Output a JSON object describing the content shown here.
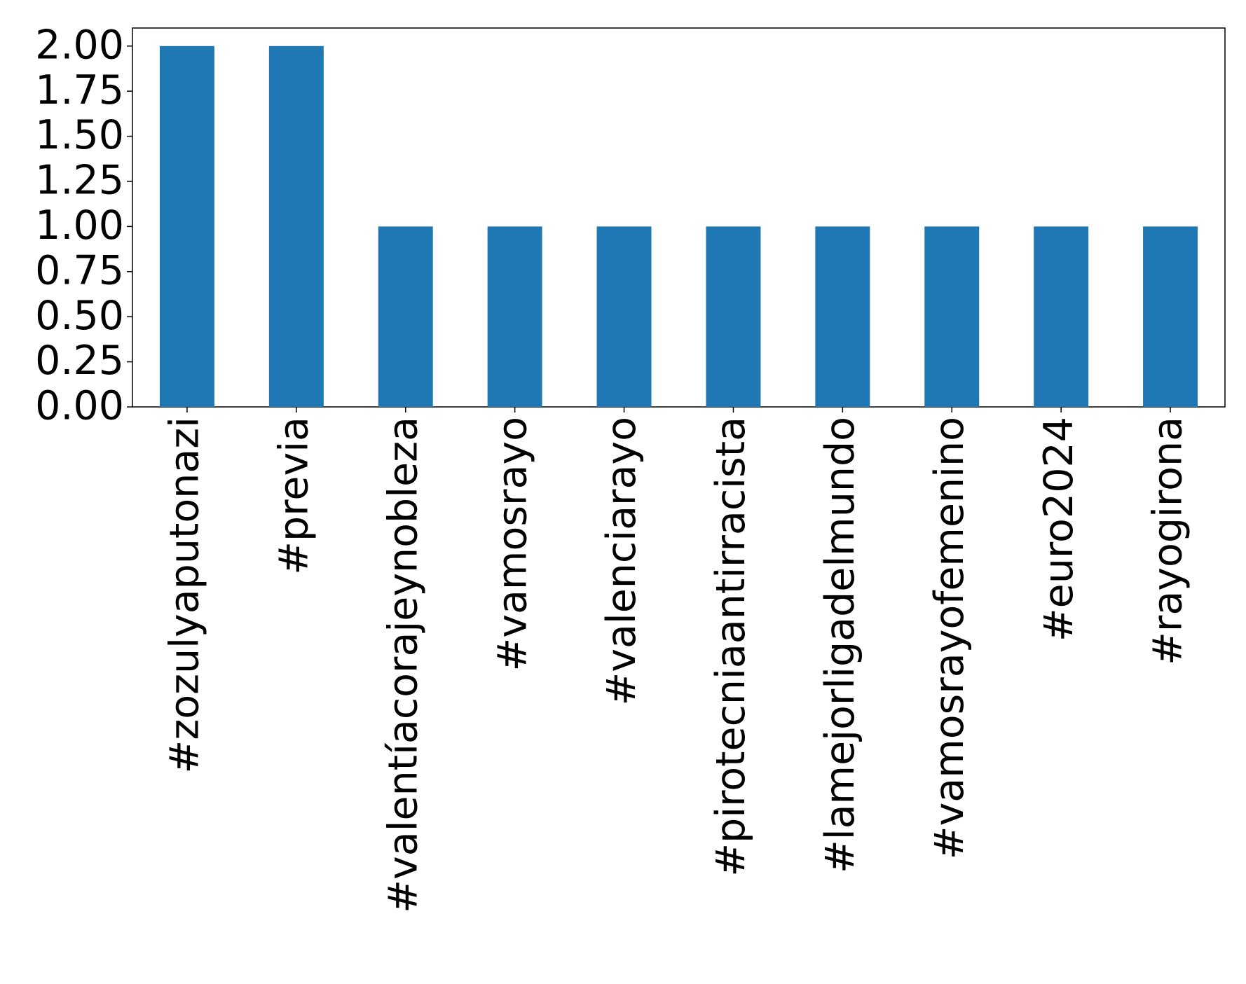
{
  "chart_data": {
    "type": "bar",
    "categories": [
      "#zozulyaputonazi",
      "#previa",
      "#valentíacorajeynobleza",
      "#vamosrayo",
      "#valenciarayo",
      "#pirotecniaantirracista",
      "#lamejorligadelmundo",
      "#vamosrayofemenino",
      "#euro2024",
      "#rayogirona"
    ],
    "values": [
      2,
      2,
      1,
      1,
      1,
      1,
      1,
      1,
      1,
      1
    ],
    "color": "#1f77b4",
    "ylim": [
      0,
      2.1
    ],
    "yticks": [
      {
        "value": 0,
        "label": "0.00"
      },
      {
        "value": 0.25,
        "label": "0.25"
      },
      {
        "value": 0.5,
        "label": "0.50"
      },
      {
        "value": 0.75,
        "label": "0.75"
      },
      {
        "value": 1,
        "label": "1.00"
      },
      {
        "value": 1.25,
        "label": "1.25"
      },
      {
        "value": 1.5,
        "label": "1.50"
      },
      {
        "value": 1.75,
        "label": "1.75"
      },
      {
        "value": 2,
        "label": "2.00"
      }
    ]
  }
}
